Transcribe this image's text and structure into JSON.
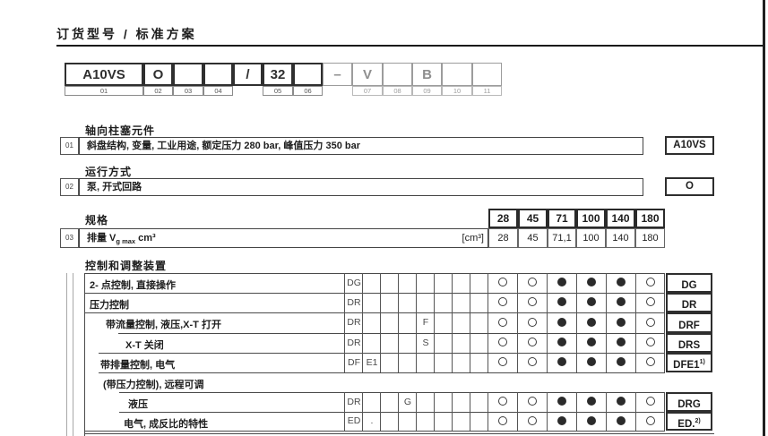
{
  "page": {
    "title": "订货型号 / 标准方案"
  },
  "model_code": {
    "cells": [
      {
        "text": "A10VS",
        "num": "01"
      },
      {
        "text": "O",
        "num": "02"
      },
      {
        "text": "",
        "num": "03"
      },
      {
        "text": "",
        "num": "04"
      },
      {
        "text": "/",
        "num": ""
      },
      {
        "text": "32",
        "num": "05"
      },
      {
        "text": "",
        "num": "06"
      },
      {
        "text": "–",
        "num": ""
      },
      {
        "text": "V",
        "num": "07"
      },
      {
        "text": "",
        "num": "08"
      },
      {
        "text": "B",
        "num": "09"
      },
      {
        "text": "",
        "num": "10"
      },
      {
        "text": "",
        "num": "11"
      }
    ]
  },
  "sections": {
    "piston_unit": {
      "header": "轴向柱塞元件",
      "row_no": "01",
      "desc": "斜盘结构, 变量, 工业用途, 额定压力 280 bar, 峰值压力 350 bar",
      "code": "A10VS"
    },
    "operation": {
      "header": "运行方式",
      "row_no": "02",
      "desc": "泵, 开式回路",
      "code": "O"
    },
    "size": {
      "header": "规格",
      "row_no": "03",
      "desc_prefix": "排量 V",
      "desc_sub": "g max",
      "desc_suffix": " cm³",
      "unit": "[cm³]",
      "columns": [
        "28",
        "45",
        "71",
        "100",
        "140",
        "180"
      ],
      "values": [
        "28",
        "45",
        "71,1",
        "100",
        "140",
        "180"
      ]
    },
    "control": {
      "header": "控制和调整装置",
      "rows": [
        {
          "desc": "2- 点控制, 直接操作",
          "code": "DG",
          "sup": "",
          "slots": [
            "DG",
            "",
            "",
            "",
            "",
            "",
            "",
            ""
          ],
          "marks": [
            "o",
            "o",
            "f",
            "f",
            "f",
            "o"
          ]
        },
        {
          "desc": "压力控制",
          "code": "DR",
          "sup": "",
          "slots": [
            "DR",
            "",
            "",
            "",
            "",
            "",
            "",
            ""
          ],
          "marks": [
            "o",
            "o",
            "f",
            "f",
            "f",
            "o"
          ]
        },
        {
          "desc": "带流量控制, 液压,X-T 打开",
          "code": "DRF",
          "sup": "",
          "slots": [
            "DR",
            "",
            "",
            "",
            "F",
            "",
            "",
            ""
          ],
          "marks": [
            "o",
            "o",
            "f",
            "f",
            "f",
            "o"
          ]
        },
        {
          "desc": "X-T 关闭",
          "code": "DRS",
          "sup": "",
          "slots": [
            "DR",
            "",
            "",
            "",
            "S",
            "",
            "",
            ""
          ],
          "marks": [
            "o",
            "o",
            "f",
            "f",
            "f",
            "o"
          ]
        },
        {
          "desc": "带排量控制, 电气",
          "code": "DFE1",
          "sup": "1)",
          "slots": [
            "DF",
            "E1",
            "",
            "",
            "",
            "",
            "",
            ""
          ],
          "marks": [
            "o",
            "o",
            "f",
            "f",
            "f",
            "o"
          ]
        },
        {
          "desc": "(带压力控制), 远程可调",
          "code": "",
          "sup": "",
          "slots": null,
          "marks": null
        },
        {
          "desc": "液压",
          "code": "DRG",
          "sup": "",
          "slots": [
            "DR",
            "",
            "",
            "G",
            "",
            "",
            "",
            ""
          ],
          "marks": [
            "o",
            "o",
            "f",
            "f",
            "f",
            "o"
          ]
        },
        {
          "desc": "电气, 成反比的特性",
          "code": "ED.",
          "sup": "2)",
          "slots": [
            "ED",
            ".",
            "",
            "",
            "",
            "",
            "",
            ""
          ],
          "marks": [
            "o",
            "o",
            "f",
            "f",
            "f",
            "o"
          ]
        }
      ]
    }
  }
}
